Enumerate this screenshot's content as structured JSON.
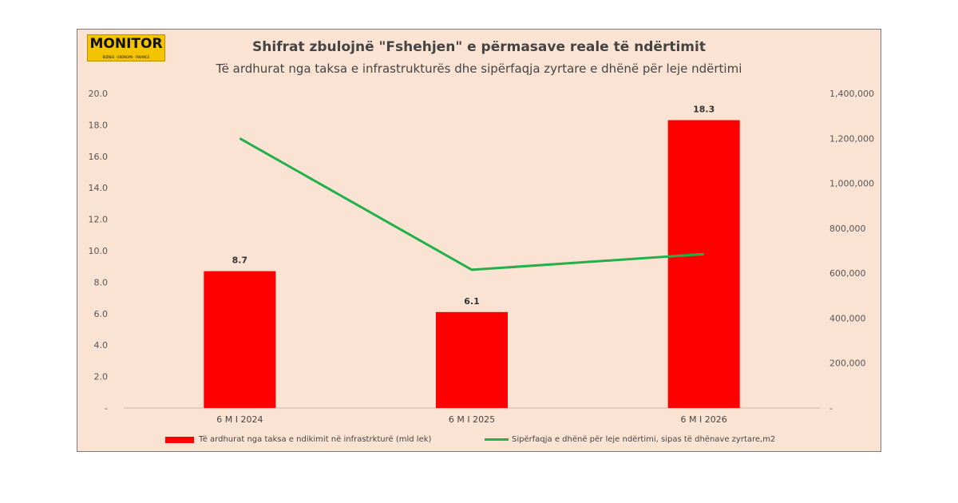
{
  "logo": {
    "text": "MONITOR",
    "subtext": "BIZNES · EKONOMI · FINANCE"
  },
  "chart_data": {
    "type": "bar",
    "title": "Shifrat zbulojnë \"Fshehjen\" e përmasave reale të ndërtimit",
    "subtitle": "Të ardhurat nga taksa e infrastrukturës dhe sipërfaqja zyrtare e dhënë për leje ndërtimi",
    "categories": [
      "6 M I 2024",
      "6 M I 2025",
      "6 M I 2026"
    ],
    "series": [
      {
        "name": "Të ardhurat nga taksa e ndikimit në infrastrkturë (mld lek)",
        "type": "bar",
        "axis": "left",
        "color": "#ff0000",
        "values": [
          8.7,
          6.1,
          18.3
        ],
        "data_labels": [
          "8.7",
          "6.1",
          "18.3"
        ]
      },
      {
        "name": "Sipërfaqja e dhënë për leje ndërtimi, sipas të dhënave zyrtare,m2",
        "type": "line",
        "axis": "right",
        "color": "#22b04a",
        "values": [
          1200000,
          615000,
          685000
        ]
      }
    ],
    "y_left": {
      "range": [
        0,
        20
      ],
      "ticks": [
        0,
        2,
        4,
        6,
        8,
        10,
        12,
        14,
        16,
        18,
        20
      ],
      "tick_labels": [
        "-",
        "2.0",
        "4.0",
        "6.0",
        "8.0",
        "10.0",
        "12.0",
        "14.0",
        "16.0",
        "18.0",
        "20.0"
      ]
    },
    "y_right": {
      "range": [
        0,
        1400000
      ],
      "ticks": [
        0,
        200000,
        400000,
        600000,
        800000,
        1000000,
        1200000,
        1400000
      ],
      "tick_labels": [
        "-",
        "200,000",
        "400,000",
        "600,000",
        "800,000",
        "1,000,000",
        "1,200,000",
        "1,400,000"
      ]
    },
    "grid": false,
    "legend_position": "bottom"
  }
}
